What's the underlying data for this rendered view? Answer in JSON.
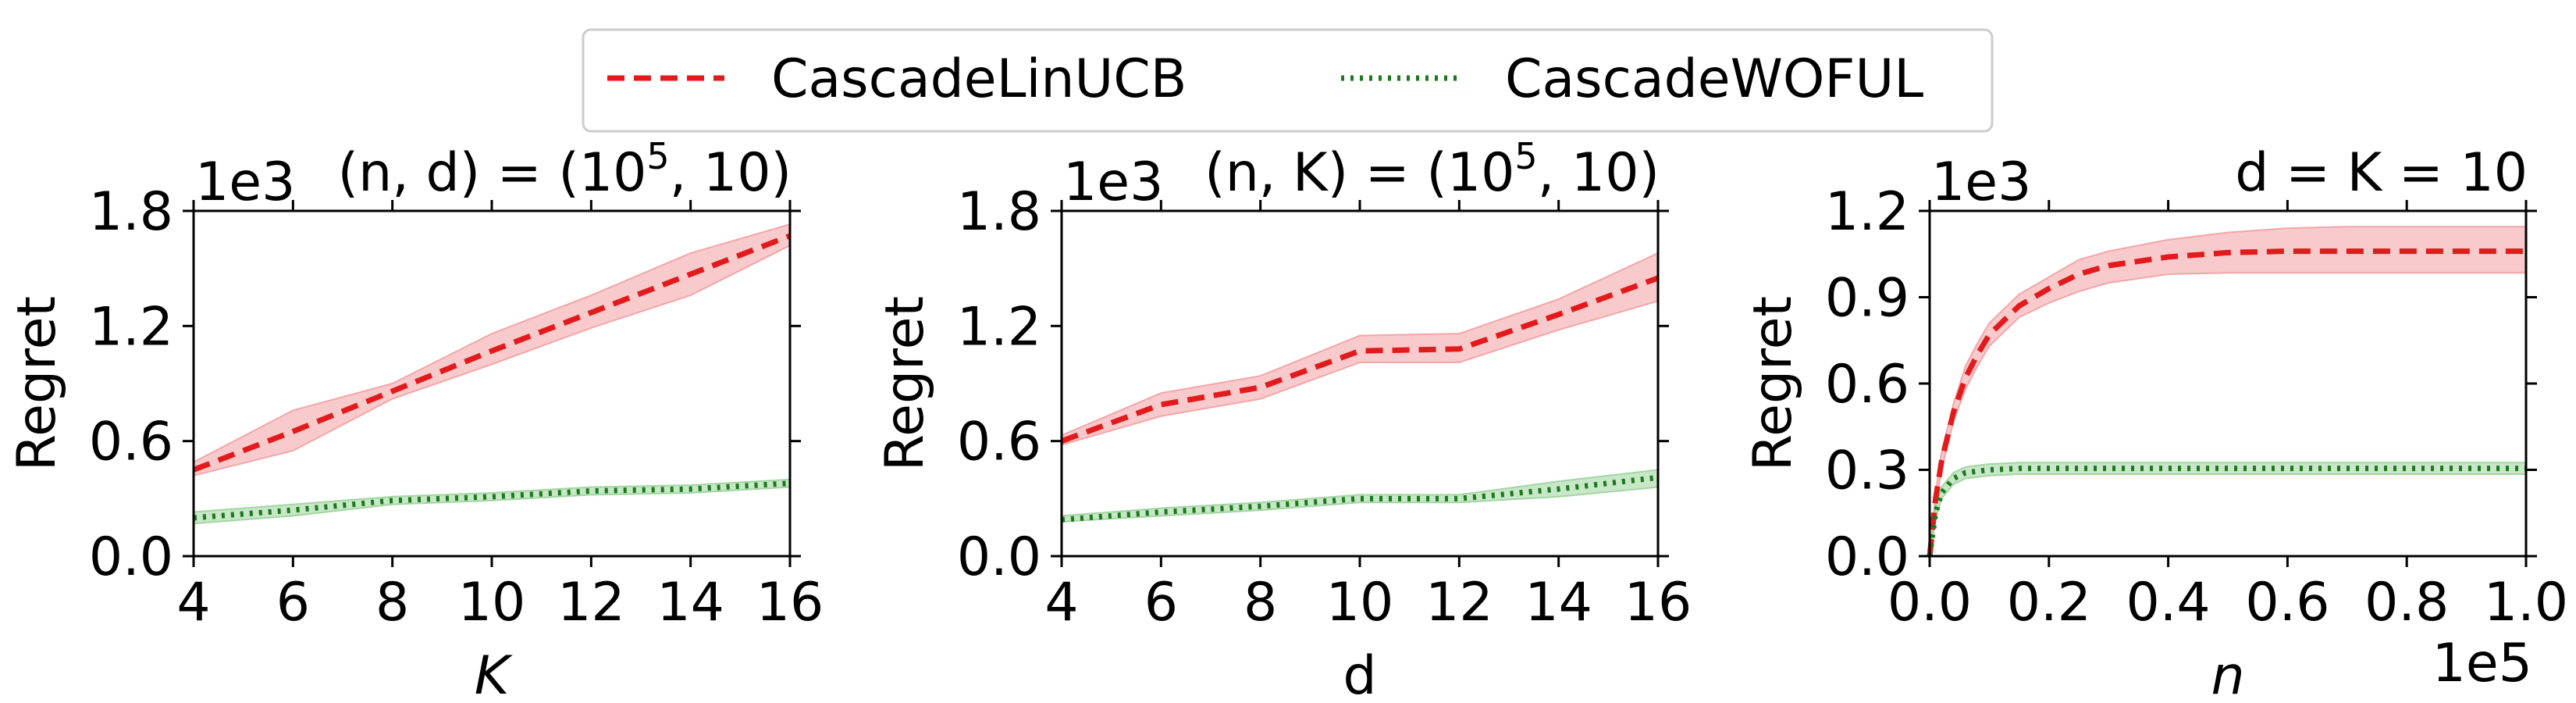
{
  "legend": {
    "placement": "top-center",
    "items": [
      {
        "label": "CascadeLinUCB",
        "color": "#e31a1c",
        "style": "dashed"
      },
      {
        "label": "CascadeWOFUL",
        "color": "#1a7a1a",
        "style": "dotted"
      }
    ]
  },
  "chart_data": [
    {
      "type": "line",
      "title": "(n, d) = (10⁵, 10)",
      "title_math": {
        "base": "(n, d) = (10",
        "sup": "5",
        "end": ", 10)"
      },
      "xlabel": "K",
      "xlabel_italic": true,
      "ylabel": "Regret",
      "y_scale_label": "1e3",
      "x_scale_label": "",
      "xlim": [
        4,
        16
      ],
      "ylim": [
        0,
        1.8
      ],
      "xticks": [
        4,
        6,
        8,
        10,
        12,
        14,
        16
      ],
      "xtick_labels": [
        "4",
        "6",
        "8",
        "10",
        "12",
        "14",
        "16"
      ],
      "yticks": [
        0,
        0.6,
        1.2,
        1.8
      ],
      "ytick_labels": [
        "0.0",
        "0.6",
        "1.2",
        "1.8"
      ],
      "grid": false,
      "x": [
        4,
        6,
        8,
        10,
        12,
        14,
        16
      ],
      "series": [
        {
          "name": "CascadeLinUCB",
          "color": "#e31a1c",
          "band_color": "#f4a6a8",
          "values": [
            0.45,
            0.65,
            0.86,
            1.07,
            1.27,
            1.47,
            1.67
          ],
          "lower": [
            0.42,
            0.55,
            0.82,
            1.0,
            1.19,
            1.36,
            1.62
          ],
          "upper": [
            0.49,
            0.76,
            0.9,
            1.16,
            1.36,
            1.58,
            1.73
          ]
        },
        {
          "name": "CascadeWOFUL",
          "color": "#1a7a1a",
          "band_color": "#a3d6a3",
          "values": [
            0.2,
            0.24,
            0.29,
            0.31,
            0.34,
            0.35,
            0.38
          ],
          "lower": [
            0.17,
            0.21,
            0.27,
            0.29,
            0.32,
            0.33,
            0.36
          ],
          "upper": [
            0.23,
            0.27,
            0.31,
            0.33,
            0.36,
            0.37,
            0.4
          ]
        }
      ]
    },
    {
      "type": "line",
      "title": "(n, K) = (10⁵, 10)",
      "title_math": {
        "base": "(n, K) = (10",
        "sup": "5",
        "end": ", 10)"
      },
      "xlabel": "d",
      "xlabel_italic": false,
      "ylabel": "Regret",
      "y_scale_label": "1e3",
      "x_scale_label": "",
      "xlim": [
        4,
        16
      ],
      "ylim": [
        0,
        1.8
      ],
      "xticks": [
        4,
        6,
        8,
        10,
        12,
        14,
        16
      ],
      "xtick_labels": [
        "4",
        "6",
        "8",
        "10",
        "12",
        "14",
        "16"
      ],
      "yticks": [
        0,
        0.6,
        1.2,
        1.8
      ],
      "ytick_labels": [
        "0.0",
        "0.6",
        "1.2",
        "1.8"
      ],
      "grid": false,
      "x": [
        4,
        6,
        8,
        10,
        12,
        14,
        16
      ],
      "series": [
        {
          "name": "CascadeLinUCB",
          "color": "#e31a1c",
          "band_color": "#f4a6a8",
          "values": [
            0.6,
            0.79,
            0.88,
            1.07,
            1.08,
            1.26,
            1.45
          ],
          "lower": [
            0.58,
            0.73,
            0.82,
            1.01,
            1.01,
            1.18,
            1.33
          ],
          "upper": [
            0.63,
            0.85,
            0.94,
            1.15,
            1.16,
            1.34,
            1.58
          ]
        },
        {
          "name": "CascadeWOFUL",
          "color": "#1a7a1a",
          "band_color": "#a3d6a3",
          "values": [
            0.19,
            0.23,
            0.26,
            0.3,
            0.3,
            0.35,
            0.41
          ],
          "lower": [
            0.18,
            0.21,
            0.24,
            0.28,
            0.28,
            0.31,
            0.36
          ],
          "upper": [
            0.21,
            0.25,
            0.28,
            0.32,
            0.32,
            0.39,
            0.45
          ]
        }
      ]
    },
    {
      "type": "line",
      "title": "d = K = 10",
      "title_math": {
        "base": "d = K = 10",
        "sup": "",
        "end": ""
      },
      "xlabel": "n",
      "xlabel_italic": true,
      "ylabel": "Regret",
      "y_scale_label": "1e3",
      "x_scale_label": "1e5",
      "xlim": [
        0,
        1.0
      ],
      "ylim": [
        0,
        1.2
      ],
      "xticks": [
        0,
        0.2,
        0.4,
        0.6,
        0.8,
        1.0
      ],
      "xtick_labels": [
        "0.0",
        "0.2",
        "0.4",
        "0.6",
        "0.8",
        "1.0"
      ],
      "yticks": [
        0,
        0.3,
        0.6,
        0.9,
        1.2
      ],
      "ytick_labels": [
        "0.0",
        "0.3",
        "0.6",
        "0.9",
        "1.2"
      ],
      "grid": false,
      "x": [
        0,
        0.01,
        0.02,
        0.04,
        0.06,
        0.08,
        0.1,
        0.15,
        0.2,
        0.25,
        0.3,
        0.4,
        0.5,
        0.6,
        0.7,
        0.8,
        0.9,
        1.0
      ],
      "series": [
        {
          "name": "CascadeLinUCB",
          "color": "#e31a1c",
          "band_color": "#f4a6a8",
          "values": [
            0,
            0.2,
            0.33,
            0.5,
            0.62,
            0.7,
            0.77,
            0.87,
            0.93,
            0.98,
            1.01,
            1.04,
            1.055,
            1.06,
            1.06,
            1.06,
            1.06,
            1.06
          ],
          "lower": [
            0,
            0.18,
            0.3,
            0.47,
            0.58,
            0.66,
            0.73,
            0.83,
            0.88,
            0.92,
            0.95,
            0.98,
            0.985,
            0.985,
            0.985,
            0.985,
            0.985,
            0.985
          ],
          "upper": [
            0,
            0.22,
            0.36,
            0.53,
            0.66,
            0.74,
            0.81,
            0.91,
            0.97,
            1.03,
            1.06,
            1.1,
            1.125,
            1.14,
            1.145,
            1.145,
            1.145,
            1.145
          ]
        },
        {
          "name": "CascadeWOFUL",
          "color": "#1a7a1a",
          "band_color": "#a3d6a3",
          "values": [
            0,
            0.15,
            0.22,
            0.27,
            0.29,
            0.295,
            0.3,
            0.305,
            0.305,
            0.305,
            0.305,
            0.305,
            0.305,
            0.305,
            0.305,
            0.305,
            0.305,
            0.305
          ],
          "lower": [
            0,
            0.13,
            0.2,
            0.25,
            0.27,
            0.275,
            0.28,
            0.285,
            0.285,
            0.285,
            0.285,
            0.285,
            0.285,
            0.285,
            0.285,
            0.285,
            0.285,
            0.285
          ],
          "upper": [
            0,
            0.17,
            0.24,
            0.29,
            0.31,
            0.315,
            0.32,
            0.325,
            0.325,
            0.325,
            0.325,
            0.325,
            0.325,
            0.325,
            0.325,
            0.325,
            0.325,
            0.325
          ]
        }
      ]
    }
  ]
}
